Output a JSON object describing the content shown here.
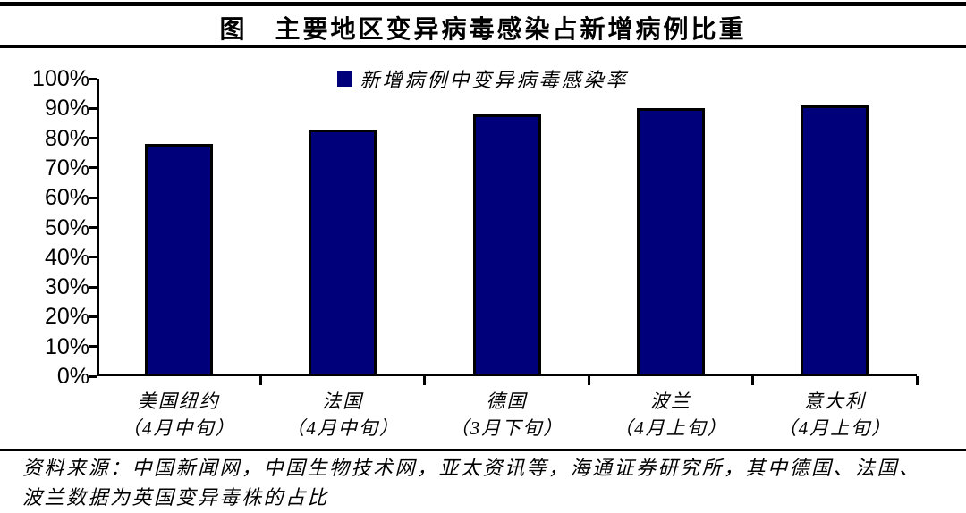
{
  "chart_data": {
    "type": "bar",
    "title": "图　主要地区变异病毒感染占新增病例比重",
    "series_name": "新增病例中变异病毒感染率",
    "categories": [
      "美国纽约",
      "法国",
      "德国",
      "波兰",
      "意大利"
    ],
    "category_periods": [
      "（4月中旬）",
      "（4月中旬）",
      "（3月下旬）",
      "（4月上旬）",
      "（4月上旬）"
    ],
    "values": [
      78,
      83,
      88,
      90,
      91
    ],
    "unit": "%",
    "xlabel": "",
    "ylabel": "",
    "ylim": [
      0,
      100
    ],
    "y_tick_step": 10,
    "y_tick_labels": [
      "0%",
      "10%",
      "20%",
      "30%",
      "40%",
      "50%",
      "60%",
      "70%",
      "80%",
      "90%",
      "100%"
    ],
    "grid": false,
    "legend_position": "top-center",
    "bar_color": "#00007B",
    "bar_border_color": "#000000"
  },
  "source": {
    "line1": "资料来源：中国新闻网，中国生物技术网，亚太资讯等，海通证券研究所，其中德国、法国、",
    "line2": "波兰数据为英国变异毒株的占比"
  }
}
